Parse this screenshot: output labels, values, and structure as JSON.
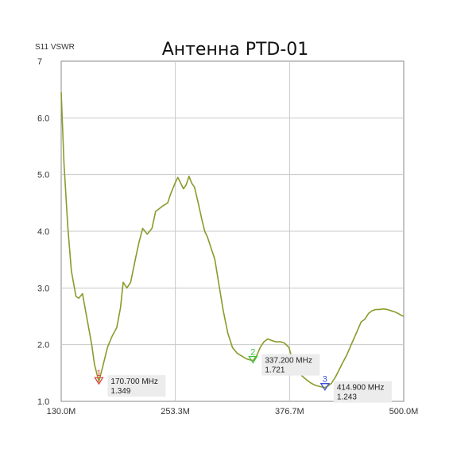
{
  "chart_data": {
    "type": "line",
    "title": "Антенна PTD-01",
    "ylabel": "S11 VSWR",
    "xlabel": "",
    "xlim": [
      130,
      500
    ],
    "ylim": [
      1.0,
      7.0
    ],
    "x_ticks": [
      {
        "value": 130,
        "label": "130.0M"
      },
      {
        "value": 253.3,
        "label": "253.3M"
      },
      {
        "value": 376.7,
        "label": "376.7M"
      },
      {
        "value": 500,
        "label": "500.0M"
      }
    ],
    "y_ticks": [
      {
        "value": 1,
        "label": "1.0"
      },
      {
        "value": 2,
        "label": "2.0"
      },
      {
        "value": 3,
        "label": "3.0"
      },
      {
        "value": 4,
        "label": "4.0"
      },
      {
        "value": 5,
        "label": "5.0"
      },
      {
        "value": 6,
        "label": "6.0"
      },
      {
        "value": 7,
        "label": "7"
      }
    ],
    "grid": true,
    "series": [
      {
        "color": "#8b9a2a",
        "x": [
          130,
          133,
          137,
          141,
          146,
          149,
          153,
          158,
          163,
          166,
          170.7,
          175,
          180,
          185,
          190,
          194,
          197,
          201,
          205,
          210,
          214,
          218,
          223,
          228,
          232,
          236,
          240,
          245,
          248,
          253,
          256,
          259,
          262,
          265,
          268,
          271,
          274,
          278,
          282,
          285,
          288,
          292,
          296,
          300,
          305,
          310,
          315,
          320,
          325,
          330,
          334,
          337.2,
          341,
          345,
          349,
          353,
          358,
          362,
          367,
          371,
          376,
          380,
          385,
          390,
          395,
          400,
          405,
          410,
          414.9,
          418,
          422,
          426,
          430,
          434,
          438,
          442,
          446,
          450,
          454,
          458,
          462,
          466,
          470,
          474,
          478,
          482,
          486,
          490,
          494,
          497,
          500
        ],
        "y": [
          6.45,
          5.2,
          4.1,
          3.3,
          2.85,
          2.82,
          2.9,
          2.45,
          2.0,
          1.65,
          1.349,
          1.62,
          1.95,
          2.15,
          2.3,
          2.65,
          3.1,
          3.0,
          3.1,
          3.5,
          3.8,
          4.05,
          3.95,
          4.05,
          4.35,
          4.4,
          4.45,
          4.5,
          4.65,
          4.85,
          4.95,
          4.85,
          4.75,
          4.82,
          4.97,
          4.85,
          4.78,
          4.5,
          4.2,
          4.0,
          3.9,
          3.7,
          3.5,
          3.1,
          2.6,
          2.2,
          1.95,
          1.85,
          1.8,
          1.75,
          1.73,
          1.721,
          1.8,
          1.95,
          2.05,
          2.1,
          2.07,
          2.05,
          2.05,
          2.03,
          1.95,
          1.72,
          1.58,
          1.45,
          1.38,
          1.32,
          1.28,
          1.26,
          1.243,
          1.27,
          1.32,
          1.42,
          1.55,
          1.68,
          1.8,
          1.95,
          2.1,
          2.25,
          2.4,
          2.45,
          2.55,
          2.6,
          2.62,
          2.62,
          2.63,
          2.62,
          2.6,
          2.58,
          2.55,
          2.52,
          2.5
        ]
      }
    ],
    "markers": [
      {
        "num": "1",
        "x": 170.7,
        "y": 1.349,
        "freq": "170.700 MHz",
        "value": "1.349",
        "color": "#e04040"
      },
      {
        "num": "2",
        "x": 337.2,
        "y": 1.721,
        "freq": "337.200 MHz",
        "value": "1.721",
        "color": "#3fc53f"
      },
      {
        "num": "3",
        "x": 414.9,
        "y": 1.243,
        "freq": "414.900 MHz",
        "value": "1.243",
        "color": "#3f4fd0"
      }
    ],
    "colors": {
      "trace": "#8b9a2a",
      "grid": "#c8c8c8",
      "frame": "#8a8a8a",
      "marker_label_bg": "#ececec"
    }
  }
}
